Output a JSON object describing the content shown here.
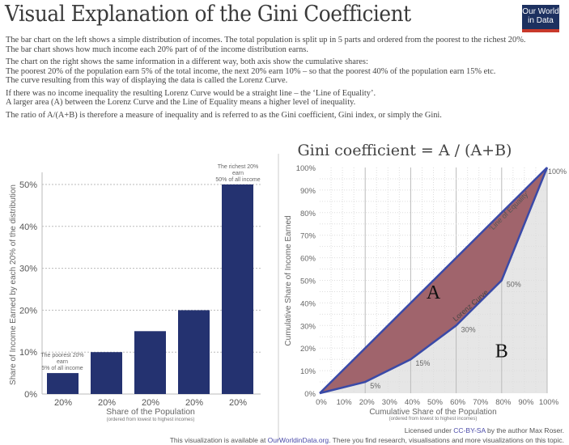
{
  "title": "Visual Explanation of the Gini Coefficient",
  "logo": {
    "line1": "Our World",
    "line2": "in Data",
    "bg": "#1d3160",
    "accent": "#c8392b"
  },
  "description": [
    [
      "The bar chart on the left shows a simple distribution of incomes. The total population is split up in 5 parts and ordered from the poorest to the richest 20%.",
      "The bar chart shows how much income each 20% part of of the income distribution earns."
    ],
    [
      "The chart on the right shows the same information in a different way, both axis show the cumulative shares:",
      "The poorest 20% of the population earn 5% of the total income, the next 20% earn 10% – so that the poorest 40% of the population earn 15% etc.",
      "The curve resulting from this way of displaying the data is called the Lorenz Curve."
    ],
    [
      "If there was no income inequality the resulting Lorenz Curve would be a straight line – the ‘Line of Equality’.",
      "A larger area (A) between the Lorenz Curve and the Line of Equality means a higher level of inequality."
    ],
    [
      "The ratio of A/(A+B) is therefore a measure of inequality and is referred to as the Gini coefficient, Gini index, or simply the Gini."
    ]
  ],
  "chart_data": [
    {
      "type": "bar",
      "categories": [
        "20%",
        "20%",
        "20%",
        "20%",
        "20%"
      ],
      "values": [
        5,
        10,
        15,
        20,
        50
      ],
      "ylabel": "Share of Income Earned by each 20% of the distribution",
      "xlabel": "Share of the Population",
      "xsublabel": "(ordered from lowest to highest incomes)",
      "ylim": [
        0,
        50
      ],
      "yticks": [
        "0%",
        "10%",
        "20%",
        "30%",
        "40%",
        "50%"
      ],
      "grid": true,
      "color": "#243270",
      "annotations": [
        [
          "The poorest 20%",
          "earn",
          "5% of all income"
        ],
        [
          "The richest 20%",
          "earn",
          "50% of all income"
        ]
      ]
    },
    {
      "type": "line",
      "title": "Gini coefficient = A / (A+B)",
      "x": [
        0,
        20,
        40,
        60,
        80,
        100
      ],
      "series": [
        {
          "name": "Lorenz Curve",
          "values": [
            0,
            5,
            15,
            30,
            50,
            100
          ]
        },
        {
          "name": "‘Line of Equality’",
          "values": [
            0,
            20,
            40,
            60,
            80,
            100
          ]
        }
      ],
      "point_labels": [
        "5%",
        "15%",
        "30%",
        "50%",
        "100%"
      ],
      "xlabel": "Cumulative Share of the Population",
      "xsublabel": "(ordered from lowest to highest incomes)",
      "ylabel": "Cumulative Share of Income Earned",
      "xlim": [
        0,
        100
      ],
      "ylim": [
        0,
        100
      ],
      "ticks": [
        "0%",
        "10%",
        "20%",
        "30%",
        "40%",
        "50%",
        "60%",
        "70%",
        "80%",
        "90%",
        "100%"
      ],
      "area_labels": [
        "A",
        "B"
      ],
      "colors": {
        "line": "#3a4aa8",
        "areaA": "#a0646c",
        "areaB": "#e6e6e6"
      },
      "grid": true
    }
  ],
  "footer": {
    "license_pre": "Licensed under ",
    "license_link": "CC-BY-SA",
    "license_post": " by the author Max Roser.",
    "avail_pre": "This visualization is available at ",
    "avail_link": "OurWorldinData.org",
    "avail_post": ". There you find research, visualisations and more visualizations on this topic."
  }
}
